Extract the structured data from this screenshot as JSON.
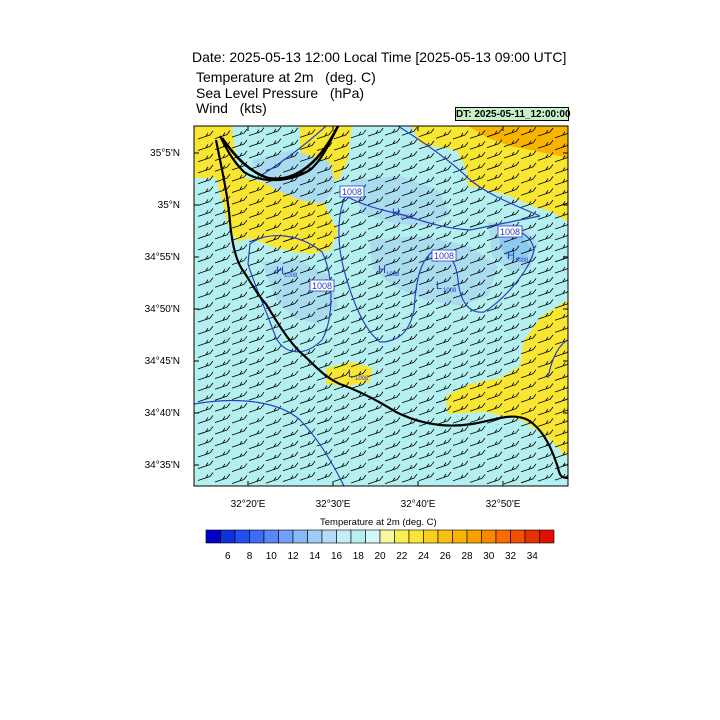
{
  "header": {
    "title": "Date: 2025-05-13  12:00 Local Time [2025-05-13  09:00 UTC]",
    "fields": [
      "Temperature at 2m   (deg. C)",
      "Sea Level Pressure   (hPa)",
      "Wind   (kts)"
    ],
    "dt_badge": "DT: 2025-05-11_12:00:00"
  },
  "map": {
    "lat_ticks": [
      "35°5'N",
      "35°N",
      "34°55'N",
      "34°50'N",
      "34°45'N",
      "34°40'N",
      "34°35'N"
    ],
    "lon_ticks": [
      "32°20'E",
      "32°30'E",
      "32°40'E",
      "32°50'E"
    ],
    "isobar_labels": [
      "1008",
      "1008",
      "1008",
      "1008"
    ],
    "pressure_centers": [
      {
        "type": "H",
        "value": "1008"
      },
      {
        "type": "H",
        "value": "1008"
      },
      {
        "type": "H",
        "value": "1008"
      },
      {
        "type": "H",
        "value": "1008"
      },
      {
        "type": "L",
        "value": "1008"
      },
      {
        "type": "L",
        "value": "1008"
      }
    ],
    "colors": {
      "water": "#b4f0f0",
      "warm": "#f8e632",
      "orange": "#f8b400",
      "light_blue": "#aadcf0",
      "isobar": "#2840c0"
    }
  },
  "colorbar": {
    "title": "Temperature at 2m  (deg. C)",
    "tick_labels": [
      "6",
      "8",
      "10",
      "12",
      "14",
      "16",
      "18",
      "20",
      "22",
      "24",
      "26",
      "28",
      "30",
      "32",
      "34"
    ],
    "colors": [
      "#0000c8",
      "#1030dc",
      "#2050f0",
      "#3c6cf8",
      "#5888f8",
      "#70a0f8",
      "#88b8f8",
      "#a0ccf8",
      "#b4dcf8",
      "#c4ecf8",
      "#b4f0f0",
      "#d0f8f8",
      "#f8f8a0",
      "#f8f050",
      "#f8e632",
      "#f8d020",
      "#f8c010",
      "#f8b400",
      "#f8a000",
      "#f88800",
      "#f86c00",
      "#f05000",
      "#e83000",
      "#e01000"
    ]
  }
}
